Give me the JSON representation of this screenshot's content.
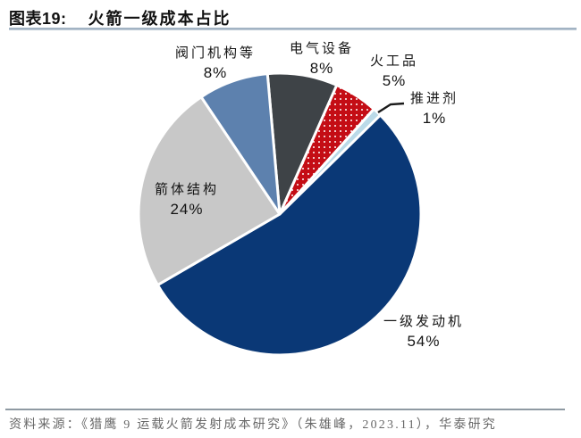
{
  "header": {
    "figure_label": "图表19:",
    "title": "火箭一级成本占比"
  },
  "chart_data": {
    "type": "pie",
    "title": "火箭一级成本占比",
    "unit": "%",
    "direction": "clockwise",
    "start_angle_deg": -5,
    "legend_position": "none",
    "slices": [
      {
        "label": "电气设备",
        "value": 8,
        "pct": "8%",
        "color": "#3e4347",
        "fill_pattern": "solid"
      },
      {
        "label": "火工品",
        "value": 5,
        "pct": "5%",
        "color": "#c40d15",
        "fill_pattern": "white-dots"
      },
      {
        "label": "推进剂",
        "value": 1,
        "pct": "1%",
        "color": "#badae8",
        "fill_pattern": "solid",
        "callout": true
      },
      {
        "label": "一级发动机",
        "value": 54,
        "pct": "54%",
        "color": "#0a3876",
        "fill_pattern": "solid"
      },
      {
        "label": "箭体结构",
        "value": 24,
        "pct": "24%",
        "color": "#c8c8c8",
        "fill_pattern": "solid"
      },
      {
        "label": "阀门机构等",
        "value": 8,
        "pct": "8%",
        "color": "#5d81ae",
        "fill_pattern": "solid"
      }
    ]
  },
  "footer": {
    "source": "资料来源：《猎鹰 9 运载火箭发射成本研究》（朱雄峰，2023.11），华泰研究"
  },
  "colors": {
    "title_rule": "#93a6ba",
    "footer_rule": "#8f9aa3",
    "slice_border": "#ffffff",
    "callout_line": "#1a1a1a"
  }
}
